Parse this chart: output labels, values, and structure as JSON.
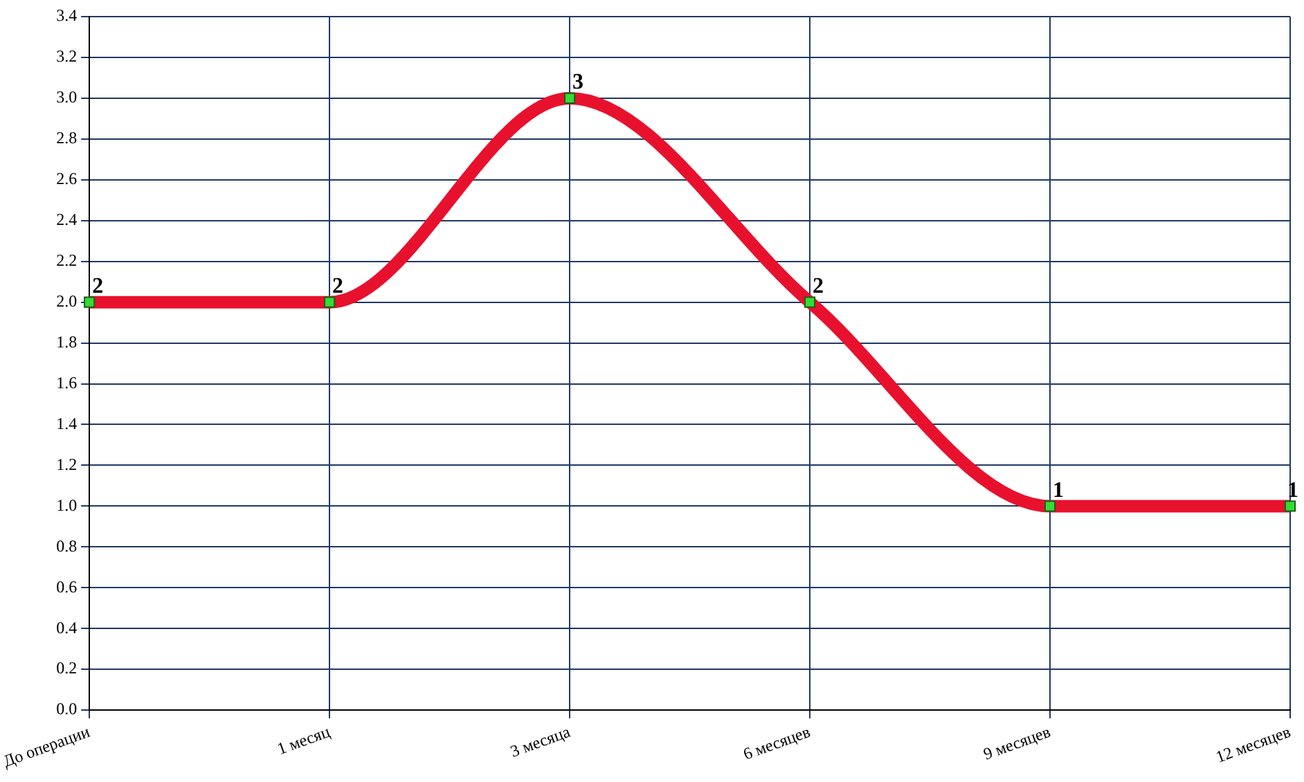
{
  "chart_data": {
    "type": "line",
    "categories": [
      "До операции",
      "1 месяц",
      "3 месяца",
      "6 месяцев",
      "9 месяцев",
      "12 месяцев"
    ],
    "values": [
      2,
      2,
      3,
      2,
      1,
      1
    ],
    "color": "#e8112d",
    "ylim": [
      0,
      3.4
    ],
    "yticks": [
      {
        "value": 0,
        "label": "0.0"
      },
      {
        "value": 0.2,
        "label": "0.2"
      },
      {
        "value": 0.4,
        "label": "0.4"
      },
      {
        "value": 0.6,
        "label": "0.6"
      },
      {
        "value": 0.8,
        "label": "0.8"
      },
      {
        "value": 1,
        "label": "1.0"
      },
      {
        "value": 1.2,
        "label": "1.2"
      },
      {
        "value": 1.4,
        "label": "1.4"
      },
      {
        "value": 1.6,
        "label": "1.6"
      },
      {
        "value": 1.8,
        "label": "1.8"
      },
      {
        "value": 2,
        "label": "2.0"
      },
      {
        "value": 2.2,
        "label": "2.2"
      },
      {
        "value": 2.4,
        "label": "2.4"
      },
      {
        "value": 2.6,
        "label": "2.6"
      },
      {
        "value": 2.8,
        "label": "2.8"
      },
      {
        "value": 3,
        "label": "3.0"
      },
      {
        "value": 3.2,
        "label": "3.2"
      },
      {
        "value": 3.4,
        "label": "3.4"
      }
    ],
    "grid": true,
    "marker": "square",
    "data_labels": true
  }
}
